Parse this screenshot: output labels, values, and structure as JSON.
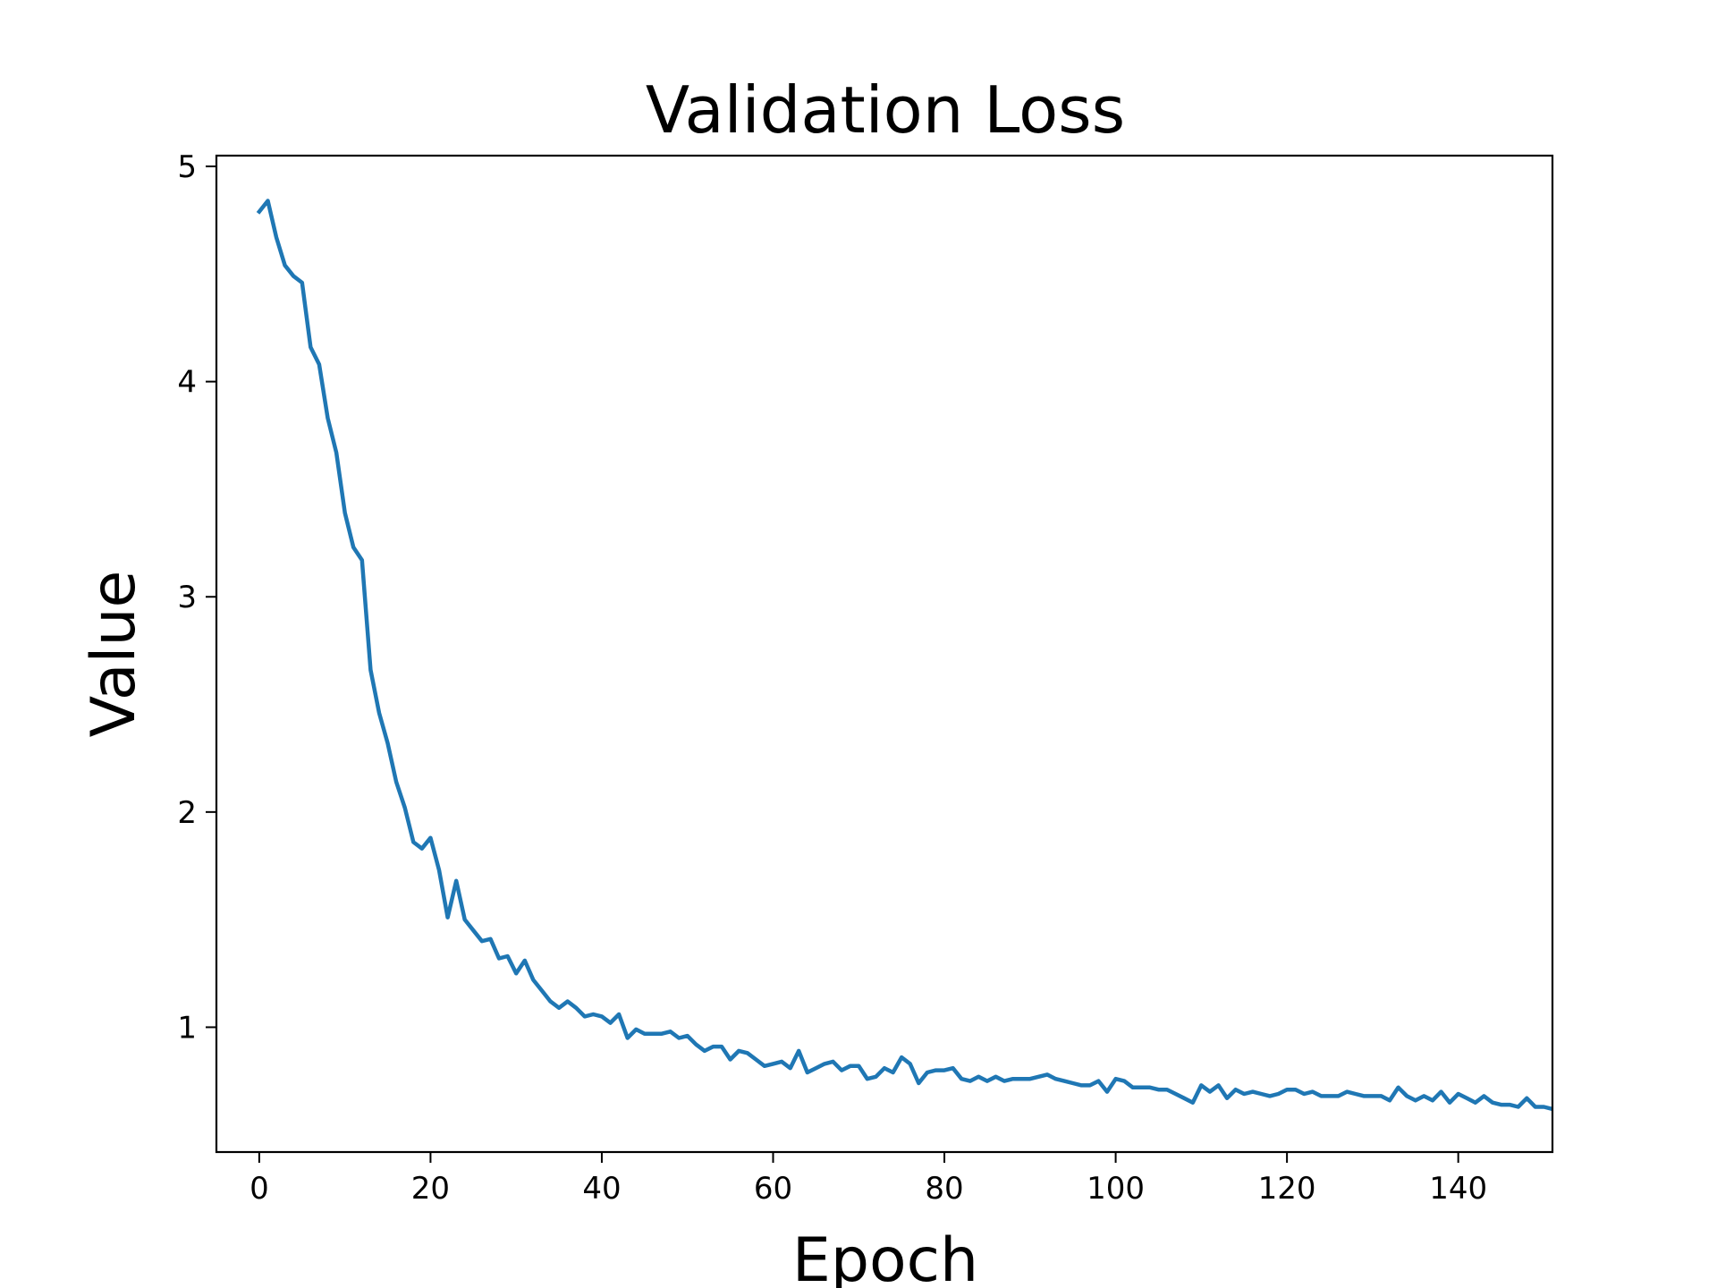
{
  "chart_data": {
    "type": "line",
    "title": "Validation Loss",
    "xlabel": "Epoch",
    "ylabel": "Value",
    "xlim": [
      -5,
      151
    ],
    "ylim": [
      0.42,
      5.05
    ],
    "grid": false,
    "legend": "none",
    "x_ticks": [
      0,
      20,
      40,
      60,
      80,
      100,
      120,
      140
    ],
    "y_ticks": [
      1,
      2,
      3,
      4,
      5
    ],
    "series": [
      {
        "color": "#1f77b4",
        "x": [
          0,
          1,
          2,
          3,
          4,
          5,
          6,
          7,
          8,
          9,
          10,
          11,
          12,
          13,
          14,
          15,
          16,
          17,
          18,
          19,
          20,
          21,
          22,
          23,
          24,
          25,
          26,
          27,
          28,
          29,
          30,
          31,
          32,
          33,
          34,
          35,
          36,
          37,
          38,
          39,
          40,
          41,
          42,
          43,
          44,
          45,
          46,
          47,
          48,
          49,
          50,
          51,
          52,
          53,
          54,
          55,
          56,
          57,
          58,
          59,
          60,
          61,
          62,
          63,
          64,
          65,
          66,
          67,
          68,
          69,
          70,
          71,
          72,
          73,
          74,
          75,
          76,
          77,
          78,
          79,
          80,
          81,
          82,
          83,
          84,
          85,
          86,
          87,
          88,
          89,
          90,
          91,
          92,
          93,
          94,
          95,
          96,
          97,
          98,
          99,
          100,
          101,
          102,
          103,
          104,
          105,
          106,
          107,
          108,
          109,
          110,
          111,
          112,
          113,
          114,
          115,
          116,
          117,
          118,
          119,
          120,
          121,
          122,
          123,
          124,
          125,
          126,
          127,
          128,
          129,
          130,
          131,
          132,
          133,
          134,
          135,
          136,
          137,
          138,
          139,
          140,
          141,
          142,
          143,
          144,
          145,
          146,
          147,
          148,
          149,
          150,
          151
        ],
        "y": [
          4.79,
          4.84,
          4.67,
          4.54,
          4.49,
          4.46,
          4.16,
          4.08,
          3.83,
          3.67,
          3.39,
          3.23,
          3.17,
          2.66,
          2.46,
          2.32,
          2.14,
          2.02,
          1.86,
          1.83,
          1.88,
          1.73,
          1.51,
          1.68,
          1.5,
          1.45,
          1.4,
          1.41,
          1.32,
          1.33,
          1.25,
          1.31,
          1.22,
          1.17,
          1.12,
          1.09,
          1.12,
          1.09,
          1.05,
          1.06,
          1.05,
          1.02,
          1.06,
          0.95,
          0.99,
          0.97,
          0.97,
          0.97,
          0.98,
          0.95,
          0.96,
          0.92,
          0.89,
          0.91,
          0.91,
          0.85,
          0.89,
          0.88,
          0.85,
          0.82,
          0.83,
          0.84,
          0.81,
          0.89,
          0.79,
          0.81,
          0.83,
          0.84,
          0.8,
          0.82,
          0.82,
          0.76,
          0.77,
          0.81,
          0.79,
          0.86,
          0.83,
          0.74,
          0.79,
          0.8,
          0.8,
          0.81,
          0.76,
          0.75,
          0.77,
          0.75,
          0.77,
          0.75,
          0.76,
          0.76,
          0.76,
          0.77,
          0.78,
          0.76,
          0.75,
          0.74,
          0.73,
          0.73,
          0.75,
          0.7,
          0.76,
          0.75,
          0.72,
          0.72,
          0.72,
          0.71,
          0.71,
          0.69,
          0.67,
          0.65,
          0.73,
          0.7,
          0.73,
          0.67,
          0.71,
          0.69,
          0.7,
          0.69,
          0.68,
          0.69,
          0.71,
          0.71,
          0.69,
          0.7,
          0.68,
          0.68,
          0.68,
          0.7,
          0.69,
          0.68,
          0.68,
          0.68,
          0.66,
          0.72,
          0.68,
          0.66,
          0.68,
          0.66,
          0.7,
          0.65,
          0.69,
          0.67,
          0.65,
          0.68,
          0.65,
          0.64,
          0.64,
          0.63,
          0.67,
          0.63,
          0.63,
          0.62
        ]
      }
    ]
  }
}
